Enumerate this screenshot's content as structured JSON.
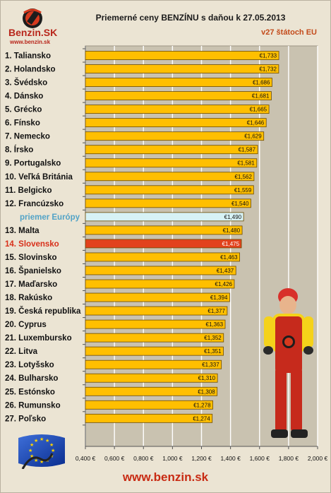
{
  "header": {
    "title": "Priemerné ceny BENZÍNU s daňou k 27.05.2013",
    "subtitle": "v27 štátoch EU",
    "logo_name": "Benzin.SK",
    "logo_url": "www.benzin.sk"
  },
  "footer": {
    "url": "www.benzin.sk"
  },
  "colors": {
    "bar": "#ffbf00",
    "bar_border": "#6b4a00",
    "average_bar": "#d7f2f5",
    "highlight_bar": "#e2421d",
    "plot_bg": "#c9c2b0",
    "grid": "#ffffff",
    "label": "#111111",
    "average_label": "#52a3c7",
    "highlight_label": "#d8301a"
  },
  "icons": [
    "benzin-logo-icon",
    "eu-flag-icon",
    "mechanic-mascot-icon"
  ],
  "chart_data": {
    "type": "bar",
    "orientation": "horizontal",
    "title": "Priemerné ceny BENZÍNU s daňou k 27.05.2013",
    "subtitle": "v27 štátoch EU",
    "categories": [
      "1. Taliansko",
      "2. Holandsko",
      "3. Švédsko",
      "4. Dánsko",
      "5. Grécko",
      "6. Fínsko",
      "7. Nemecko",
      "8. Írsko",
      "9. Portugalsko",
      "10. Veľká Británia",
      "11. Belgicko",
      "12. Francúzsko",
      "priemer Európy",
      "13. Malta",
      "14. Slovensko",
      "15. Slovinsko",
      "16. Španielsko",
      "17. Maďarsko",
      "18. Rakúsko",
      "19. Česká republika",
      "20. Cyprus",
      "21. Luxembursko",
      "22. Litva",
      "23. Lotyšsko",
      "24. Bulharsko",
      "25. Estónsko",
      "26. Rumunsko",
      "27. Poľsko"
    ],
    "values": [
      1.733,
      1.732,
      1.686,
      1.681,
      1.665,
      1.646,
      1.629,
      1.587,
      1.581,
      1.562,
      1.559,
      1.54,
      1.49,
      1.48,
      1.475,
      1.463,
      1.437,
      1.426,
      1.394,
      1.377,
      1.363,
      1.352,
      1.351,
      1.337,
      1.31,
      1.308,
      1.278,
      1.274
    ],
    "value_labels": [
      "€1,733",
      "€1,732",
      "€1,686",
      "€1,681",
      "€1,665",
      "€1,646",
      "€1,629",
      "€1,587",
      "€1,581",
      "€1,562",
      "€1,559",
      "€1,540",
      "€1,490",
      "€1,480",
      "€1,475",
      "€1,463",
      "€1,437",
      "€1,426",
      "€1,394",
      "€1,377",
      "€1,363",
      "€1,352",
      "€1,351",
      "€1,337",
      "€1,310",
      "€1,308",
      "€1,278",
      "€1,274"
    ],
    "average_index": 12,
    "highlight_index": 14,
    "xlim": [
      0.4,
      2.0
    ],
    "xticks": [
      0.4,
      0.6,
      0.8,
      1.0,
      1.2,
      1.4,
      1.6,
      1.8,
      2.0
    ],
    "xtick_labels": [
      "0,400 €",
      "0,600 €",
      "0,800 €",
      "1,000 €",
      "1,200 €",
      "1,400 €",
      "1,600 €",
      "1,800 €",
      "2,000 €"
    ],
    "grid": true,
    "legend": "none"
  }
}
